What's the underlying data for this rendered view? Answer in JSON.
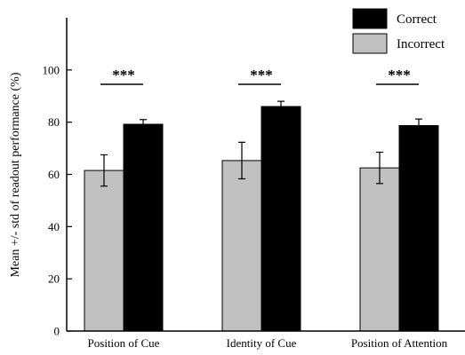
{
  "chart_data": {
    "type": "bar",
    "ylabel": "Mean +/- std of readout performance (%)",
    "xlabel": "",
    "ylim": [
      0,
      120
    ],
    "yticks": [
      0,
      20,
      40,
      60,
      80,
      100
    ],
    "categories": [
      "Position of Cue",
      "Identity of Cue",
      "Position of Attention"
    ],
    "series": [
      {
        "name": "Incorrect",
        "color": "#c0c0c0",
        "values": [
          61.5,
          65.3,
          62.5
        ],
        "err": [
          6.0,
          7.0,
          6.0
        ]
      },
      {
        "name": "Correct",
        "color": "#000000",
        "values": [
          79.2,
          86.0,
          78.7
        ],
        "err": [
          1.8,
          2.0,
          2.5
        ]
      }
    ],
    "significance": [
      "***",
      "***",
      "***"
    ],
    "legend": {
      "position": "top-right",
      "entries": [
        "Correct",
        "Incorrect"
      ]
    },
    "grid": false
  }
}
